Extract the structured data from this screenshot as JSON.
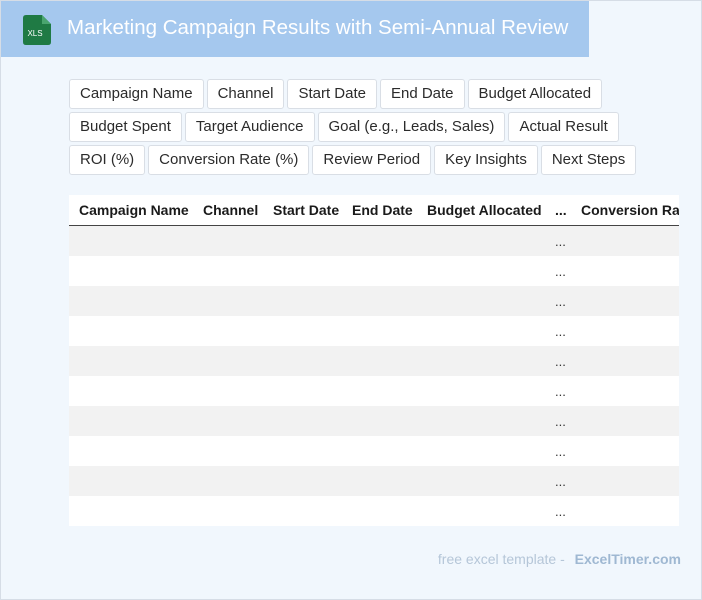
{
  "header": {
    "title": "Marketing Campaign Results with Semi-Annual Review",
    "file_icon": "xls-file-icon",
    "file_icon_label": "XLS",
    "file_icon_color": "#1f7a44"
  },
  "tags": [
    "Campaign Name",
    "Channel",
    "Start Date",
    "End Date",
    "Budget Allocated",
    "Budget Spent",
    "Target Audience",
    "Goal (e.g., Leads, Sales)",
    "Actual Result",
    "ROI (%)",
    "Conversion Rate (%)",
    "Review Period",
    "Key Insights",
    "Next Steps"
  ],
  "table": {
    "columns": [
      "Campaign Name",
      "Channel",
      "Start Date",
      "End Date",
      "Budget Allocated",
      "...",
      "Conversion Rate (%)"
    ],
    "ellipsis": "...",
    "row_count": 10
  },
  "footer": {
    "prefix": "free excel template -",
    "brand": "ExcelTimer.com"
  }
}
